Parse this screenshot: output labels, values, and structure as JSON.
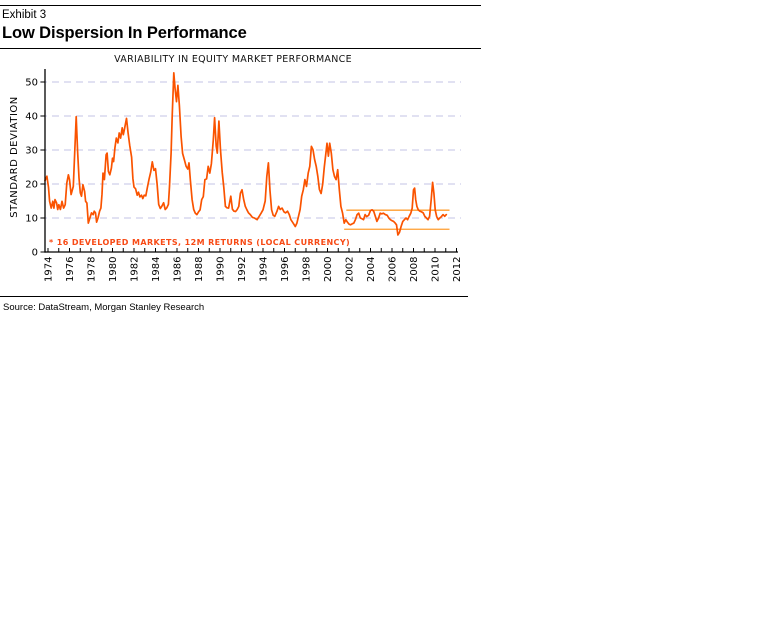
{
  "header": {
    "exhibit": "Exhibit 3",
    "title": "Low Dispersion In Performance"
  },
  "source": "Source: DataStream, Morgan Stanley Research",
  "chart_data": {
    "type": "line",
    "title": "VARIABILITY IN EQUITY MARKET PERFORMANCE",
    "ylabel": "STANDARD DEVIATION",
    "xlabel": "",
    "legend": "* 16 DEVELOPED MARKETS, 12M RETURNS (LOCAL CURRENCY)",
    "grid": "horizontal dashed",
    "legend_position": "inside bottom-left",
    "ylim": [
      0,
      55
    ],
    "xlim": [
      1973.7,
      2012.2
    ],
    "yticks": [
      0,
      10,
      20,
      30,
      40,
      50
    ],
    "xticks": [
      1974,
      1976,
      1978,
      1980,
      1982,
      1984,
      1986,
      1988,
      1990,
      1992,
      1994,
      1996,
      1998,
      2000,
      2002,
      2004,
      2006,
      2008,
      2010,
      2012
    ],
    "x_minor_tick_step_years": 1,
    "colors": {
      "line": "#fa5300",
      "legend": "#f84a15",
      "band": "#ff9d2e",
      "grid": "#c3c3e4",
      "axis": "#000000"
    },
    "reference_lines": [
      {
        "name": "upper-band",
        "value": 12.3,
        "from_year": 2001.75,
        "to_year": 2011.35
      },
      {
        "name": "lower-band",
        "value": 6.7,
        "from_year": 2001.55,
        "to_year": 2011.35
      }
    ],
    "series": [
      {
        "name": "Cross-sectional standard deviation of 12M returns, 16 developed markets (local currency)",
        "points": [
          [
            1973.72,
            21.0
          ],
          [
            1973.9,
            22.3
          ],
          [
            1974.05,
            19.0
          ],
          [
            1974.15,
            14.9
          ],
          [
            1974.3,
            12.9
          ],
          [
            1974.45,
            14.9
          ],
          [
            1974.55,
            12.9
          ],
          [
            1974.65,
            15.4
          ],
          [
            1974.8,
            14.4
          ],
          [
            1974.9,
            12.5
          ],
          [
            1975.0,
            13.9
          ],
          [
            1975.15,
            12.5
          ],
          [
            1975.3,
            14.9
          ],
          [
            1975.45,
            12.9
          ],
          [
            1975.6,
            13.9
          ],
          [
            1975.75,
            20.3
          ],
          [
            1975.9,
            22.7
          ],
          [
            1976.0,
            21.3
          ],
          [
            1976.15,
            16.9
          ],
          [
            1976.35,
            19.3
          ],
          [
            1976.5,
            30.6
          ],
          [
            1976.62,
            39.8
          ],
          [
            1976.75,
            29.6
          ],
          [
            1976.88,
            21.8
          ],
          [
            1977.0,
            17.4
          ],
          [
            1977.12,
            16.4
          ],
          [
            1977.25,
            19.8
          ],
          [
            1977.4,
            17.8
          ],
          [
            1977.5,
            14.9
          ],
          [
            1977.62,
            14.4
          ],
          [
            1977.75,
            8.5
          ],
          [
            1977.9,
            10.0
          ],
          [
            1978.05,
            11.5
          ],
          [
            1978.2,
            11.0
          ],
          [
            1978.3,
            12.0
          ],
          [
            1978.42,
            11.5
          ],
          [
            1978.52,
            8.8
          ],
          [
            1978.65,
            10.0
          ],
          [
            1978.8,
            12.0
          ],
          [
            1978.92,
            12.9
          ],
          [
            1979.02,
            17.0
          ],
          [
            1979.12,
            23.2
          ],
          [
            1979.25,
            21.3
          ],
          [
            1979.4,
            28.6
          ],
          [
            1979.5,
            29.1
          ],
          [
            1979.62,
            23.7
          ],
          [
            1979.75,
            22.7
          ],
          [
            1979.9,
            24.7
          ],
          [
            1980.0,
            27.6
          ],
          [
            1980.1,
            26.6
          ],
          [
            1980.22,
            30.6
          ],
          [
            1980.35,
            33.5
          ],
          [
            1980.5,
            32.1
          ],
          [
            1980.62,
            35.0
          ],
          [
            1980.75,
            33.5
          ],
          [
            1980.9,
            36.5
          ],
          [
            1981.0,
            34.5
          ],
          [
            1981.12,
            36.2
          ],
          [
            1981.3,
            39.3
          ],
          [
            1981.45,
            35.0
          ],
          [
            1981.6,
            31.4
          ],
          [
            1981.78,
            27.9
          ],
          [
            1981.9,
            21.6
          ],
          [
            1982.0,
            19.1
          ],
          [
            1982.15,
            18.6
          ],
          [
            1982.3,
            16.7
          ],
          [
            1982.42,
            17.6
          ],
          [
            1982.55,
            16.2
          ],
          [
            1982.7,
            16.7
          ],
          [
            1982.82,
            15.7
          ],
          [
            1982.95,
            16.7
          ],
          [
            1983.1,
            16.5
          ],
          [
            1983.25,
            19.0
          ],
          [
            1983.4,
            21.5
          ],
          [
            1983.55,
            23.5
          ],
          [
            1983.7,
            26.5
          ],
          [
            1983.85,
            24.0
          ],
          [
            1984.0,
            24.5
          ],
          [
            1984.15,
            20.0
          ],
          [
            1984.3,
            14.0
          ],
          [
            1984.45,
            12.8
          ],
          [
            1984.6,
            13.5
          ],
          [
            1984.75,
            14.5
          ],
          [
            1984.9,
            12.5
          ],
          [
            1985.05,
            13.0
          ],
          [
            1985.2,
            14.0
          ],
          [
            1985.3,
            19.3
          ],
          [
            1985.45,
            29.1
          ],
          [
            1985.55,
            40.0
          ],
          [
            1985.7,
            52.7
          ],
          [
            1985.82,
            48.0
          ],
          [
            1985.95,
            44.2
          ],
          [
            1986.08,
            49.0
          ],
          [
            1986.22,
            43.0
          ],
          [
            1986.38,
            34.0
          ],
          [
            1986.52,
            29.0
          ],
          [
            1986.68,
            27.2
          ],
          [
            1986.85,
            25.2
          ],
          [
            1987.0,
            24.4
          ],
          [
            1987.12,
            26.2
          ],
          [
            1987.25,
            21.0
          ],
          [
            1987.4,
            15.4
          ],
          [
            1987.55,
            12.5
          ],
          [
            1987.7,
            11.4
          ],
          [
            1987.85,
            11.0
          ],
          [
            1988.0,
            11.8
          ],
          [
            1988.15,
            12.4
          ],
          [
            1988.3,
            15.4
          ],
          [
            1988.45,
            16.3
          ],
          [
            1988.6,
            21.3
          ],
          [
            1988.75,
            21.5
          ],
          [
            1988.9,
            25.2
          ],
          [
            1989.05,
            23.2
          ],
          [
            1989.2,
            26.0
          ],
          [
            1989.38,
            33.0
          ],
          [
            1989.5,
            39.5
          ],
          [
            1989.65,
            31.1
          ],
          [
            1989.75,
            29.1
          ],
          [
            1989.9,
            38.5
          ],
          [
            1990.05,
            30.0
          ],
          [
            1990.2,
            23.5
          ],
          [
            1990.35,
            19.0
          ],
          [
            1990.5,
            13.4
          ],
          [
            1990.65,
            13.0
          ],
          [
            1990.8,
            12.9
          ],
          [
            1991.0,
            16.4
          ],
          [
            1991.15,
            12.6
          ],
          [
            1991.3,
            12.0
          ],
          [
            1991.45,
            11.9
          ],
          [
            1991.6,
            12.5
          ],
          [
            1991.75,
            13.4
          ],
          [
            1991.9,
            17.3
          ],
          [
            1992.05,
            18.3
          ],
          [
            1992.2,
            15.4
          ],
          [
            1992.35,
            13.4
          ],
          [
            1992.5,
            12.4
          ],
          [
            1992.65,
            11.5
          ],
          [
            1992.82,
            11.0
          ],
          [
            1993.0,
            10.2
          ],
          [
            1993.2,
            10.0
          ],
          [
            1993.45,
            9.5
          ],
          [
            1993.65,
            10.5
          ],
          [
            1993.82,
            11.4
          ],
          [
            1994.0,
            12.4
          ],
          [
            1994.2,
            15.0
          ],
          [
            1994.35,
            22.2
          ],
          [
            1994.5,
            26.2
          ],
          [
            1994.65,
            18.0
          ],
          [
            1994.8,
            12.4
          ],
          [
            1994.95,
            10.8
          ],
          [
            1995.1,
            10.5
          ],
          [
            1995.3,
            12.0
          ],
          [
            1995.45,
            13.4
          ],
          [
            1995.6,
            12.5
          ],
          [
            1995.78,
            12.9
          ],
          [
            1995.95,
            11.8
          ],
          [
            1996.1,
            11.5
          ],
          [
            1996.28,
            12.0
          ],
          [
            1996.45,
            11.0
          ],
          [
            1996.6,
            9.5
          ],
          [
            1996.8,
            8.5
          ],
          [
            1997.0,
            7.5
          ],
          [
            1997.15,
            8.5
          ],
          [
            1997.3,
            10.5
          ],
          [
            1997.45,
            12.5
          ],
          [
            1997.6,
            16.4
          ],
          [
            1997.75,
            18.3
          ],
          [
            1997.9,
            21.3
          ],
          [
            1998.05,
            19.3
          ],
          [
            1998.2,
            23.2
          ],
          [
            1998.35,
            25.2
          ],
          [
            1998.5,
            31.1
          ],
          [
            1998.65,
            30.1
          ],
          [
            1998.8,
            27.2
          ],
          [
            1998.95,
            25.2
          ],
          [
            1999.1,
            22.3
          ],
          [
            1999.25,
            18.4
          ],
          [
            1999.4,
            17.2
          ],
          [
            1999.55,
            20.0
          ],
          [
            1999.7,
            25.0
          ],
          [
            1999.85,
            29.1
          ],
          [
            1999.95,
            32.0
          ],
          [
            2000.08,
            28.2
          ],
          [
            2000.2,
            32.0
          ],
          [
            2000.35,
            29.1
          ],
          [
            2000.5,
            24.2
          ],
          [
            2000.65,
            22.2
          ],
          [
            2000.8,
            21.3
          ],
          [
            2000.95,
            24.2
          ],
          [
            2001.1,
            18.4
          ],
          [
            2001.25,
            13.4
          ],
          [
            2001.4,
            11.4
          ],
          [
            2001.55,
            8.5
          ],
          [
            2001.7,
            9.5
          ],
          [
            2001.85,
            8.8
          ],
          [
            2002.0,
            8.2
          ],
          [
            2002.15,
            8.0
          ],
          [
            2002.3,
            8.3
          ],
          [
            2002.45,
            8.5
          ],
          [
            2002.6,
            9.5
          ],
          [
            2002.75,
            11.0
          ],
          [
            2002.9,
            11.4
          ],
          [
            2003.05,
            10.0
          ],
          [
            2003.2,
            9.8
          ],
          [
            2003.35,
            9.5
          ],
          [
            2003.5,
            11.0
          ],
          [
            2003.65,
            10.4
          ],
          [
            2003.82,
            10.8
          ],
          [
            2004.0,
            12.2
          ],
          [
            2004.15,
            12.4
          ],
          [
            2004.3,
            12.0
          ],
          [
            2004.45,
            10.5
          ],
          [
            2004.6,
            9.0
          ],
          [
            2004.75,
            10.0
          ],
          [
            2004.9,
            11.4
          ],
          [
            2005.05,
            11.2
          ],
          [
            2005.2,
            11.4
          ],
          [
            2005.38,
            11.0
          ],
          [
            2005.55,
            10.8
          ],
          [
            2005.7,
            10.0
          ],
          [
            2005.85,
            9.5
          ],
          [
            2006.0,
            9.2
          ],
          [
            2006.15,
            9.0
          ],
          [
            2006.3,
            8.5
          ],
          [
            2006.42,
            8.0
          ],
          [
            2006.55,
            5.0
          ],
          [
            2006.7,
            5.8
          ],
          [
            2006.85,
            7.5
          ],
          [
            2007.0,
            9.0
          ],
          [
            2007.15,
            9.5
          ],
          [
            2007.3,
            10.0
          ],
          [
            2007.45,
            9.5
          ],
          [
            2007.6,
            10.5
          ],
          [
            2007.75,
            11.4
          ],
          [
            2007.88,
            12.9
          ],
          [
            2008.0,
            18.3
          ],
          [
            2008.1,
            18.8
          ],
          [
            2008.2,
            15.4
          ],
          [
            2008.32,
            13.4
          ],
          [
            2008.45,
            12.4
          ],
          [
            2008.6,
            12.0
          ],
          [
            2008.75,
            11.8
          ],
          [
            2008.9,
            11.5
          ],
          [
            2009.05,
            10.5
          ],
          [
            2009.2,
            10.0
          ],
          [
            2009.35,
            9.5
          ],
          [
            2009.5,
            10.5
          ],
          [
            2009.65,
            15.4
          ],
          [
            2009.78,
            20.5
          ],
          [
            2009.9,
            17.3
          ],
          [
            2010.02,
            12.4
          ],
          [
            2010.15,
            10.5
          ],
          [
            2010.3,
            9.5
          ],
          [
            2010.45,
            10.0
          ],
          [
            2010.6,
            10.4
          ],
          [
            2010.75,
            11.0
          ],
          [
            2010.9,
            10.5
          ],
          [
            2011.05,
            11.0
          ]
        ]
      }
    ]
  }
}
